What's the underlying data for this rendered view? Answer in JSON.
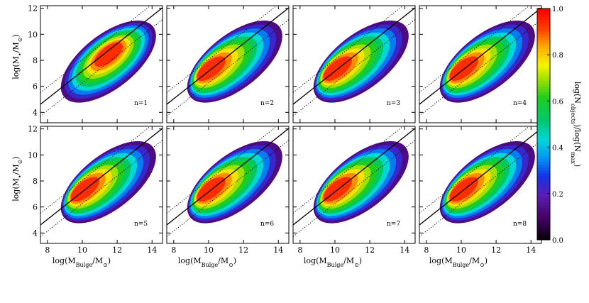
{
  "chart_data": {
    "type": "heatmap",
    "panel_labels": [
      "n=1",
      "n=2",
      "n=3",
      "n=4",
      "n=5",
      "n=6",
      "n=7",
      "n=8"
    ],
    "xlabel_parts": [
      "log(M",
      "Bulge",
      "/M",
      "⊙",
      ")"
    ],
    "ylabel_parts": [
      "log(M",
      "•",
      "/M",
      "⊙",
      ")"
    ],
    "colorbar_label_parts": [
      "log(N",
      "objects",
      ")/log(N",
      "max",
      ")"
    ],
    "x_ticks": [
      "8",
      "10",
      "12",
      "14"
    ],
    "x_tick_values": [
      8,
      10,
      12,
      14
    ],
    "y_ticks": [
      "4",
      "6",
      "8",
      "10",
      "12"
    ],
    "y_tick_values": [
      4,
      6,
      8,
      10,
      12
    ],
    "xlim": [
      7.6,
      14.6
    ],
    "ylim": [
      3.2,
      12.2
    ],
    "colorbar_ticks": [
      "0.0",
      "0.2",
      "0.4",
      "0.6",
      "0.8",
      "1.0"
    ],
    "colorbar_tick_values": [
      0,
      0.2,
      0.4,
      0.6,
      0.8,
      1.0
    ],
    "colorbar_range": [
      0,
      1
    ],
    "reference_line": {
      "x": [
        7.6,
        14.6
      ],
      "y": [
        4.62,
        12.04
      ]
    },
    "scatter_offset_dex": 0.3,
    "peak_location": {
      "x": 10.0,
      "y": 7.3
    },
    "n1_peak_location": {
      "x": 11.5,
      "y": 8.5
    }
  }
}
